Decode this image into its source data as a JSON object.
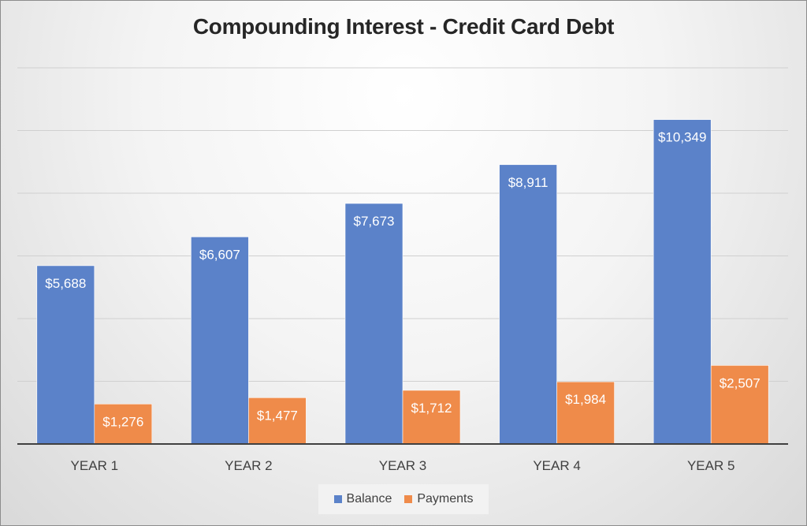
{
  "chart_data": {
    "type": "bar",
    "title": "Compounding Interest - Credit Card Debt",
    "categories": [
      "YEAR 1",
      "YEAR 2",
      "YEAR 3",
      "YEAR 4",
      "YEAR 5"
    ],
    "series": [
      {
        "name": "Balance",
        "color": "#5b82c9",
        "values": [
          5688,
          6607,
          7673,
          8911,
          10349
        ],
        "labels": [
          "$5,688",
          "$6,607",
          "$7,673",
          "$8,911",
          "$10,349"
        ]
      },
      {
        "name": "Payments",
        "color": "#ef8b4a",
        "values": [
          1276,
          1477,
          1712,
          1984,
          2507
        ],
        "labels": [
          "$1,276",
          "$1,477",
          "$1,712",
          "$1,984",
          "$2,507"
        ]
      }
    ],
    "ylim": [
      0,
      12000
    ],
    "grid": true,
    "legend_position": "bottom",
    "xlabel": "",
    "ylabel": ""
  }
}
